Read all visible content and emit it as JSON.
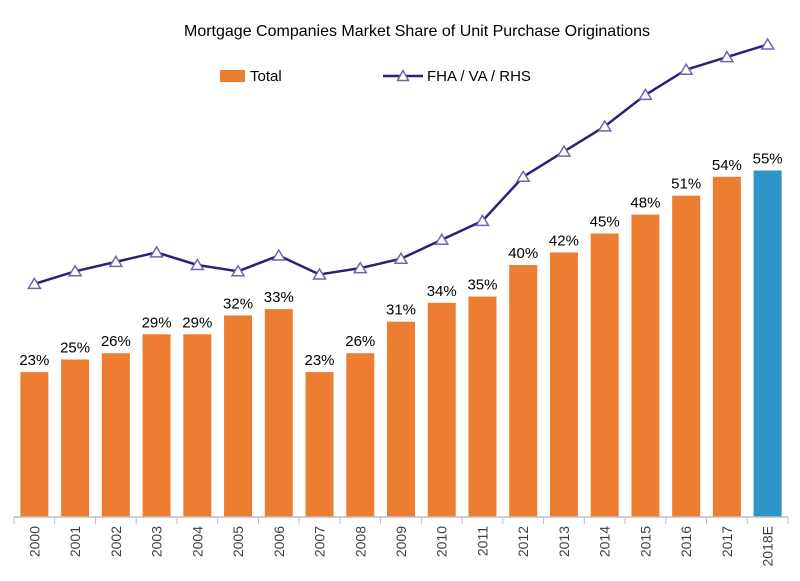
{
  "chart_data": {
    "type": "combo-bar-line",
    "title": "Mortgage Companies Market Share of Unit Purchase Originations",
    "categories": [
      "2000",
      "2001",
      "2002",
      "2003",
      "2004",
      "2005",
      "2006",
      "2007",
      "2008",
      "2009",
      "2010",
      "2011",
      "2012",
      "2013",
      "2014",
      "2015",
      "2016",
      "2017",
      "2018E"
    ],
    "series": [
      {
        "name": "Total",
        "type": "bar",
        "values": [
          23,
          25,
          26,
          29,
          29,
          32,
          33,
          23,
          26,
          31,
          34,
          35,
          40,
          42,
          45,
          48,
          51,
          54,
          55
        ],
        "labels": [
          "23%",
          "25%",
          "26%",
          "29%",
          "29%",
          "32%",
          "33%",
          "23%",
          "26%",
          "31%",
          "34%",
          "35%",
          "40%",
          "42%",
          "45%",
          "48%",
          "51%",
          "54%",
          "55%"
        ],
        "color": "#ED7D31",
        "last_bar_color": "#2D96C6"
      },
      {
        "name": "FHA / VA / RHS",
        "type": "line",
        "values": [
          37,
          39,
          40.5,
          42,
          40,
          39,
          41.5,
          38.5,
          39.5,
          41,
          44,
          47,
          54,
          58,
          62,
          67,
          71,
          73,
          75
        ],
        "color": "#2E2076",
        "marker": "triangle",
        "marker_fill": "#FFFFFF",
        "marker_stroke": "#7264AA"
      }
    ],
    "xlabel": "",
    "ylabel": "",
    "ylim": [
      0,
      80
    ],
    "value_label_format": "percent",
    "grid": false,
    "legend_position": "top",
    "x_tick_label_rotation": 90
  },
  "colors": {
    "bar_orange": "#ED7D31",
    "bar_blue": "#2D96C6",
    "line_purple": "#2E2076",
    "marker_stroke": "#7264AA",
    "axis_line": "#BFBFBF",
    "x_label_text": "#404040",
    "data_label_text": "#000000",
    "title_text": "#000000",
    "background": "#FFFFFF"
  }
}
